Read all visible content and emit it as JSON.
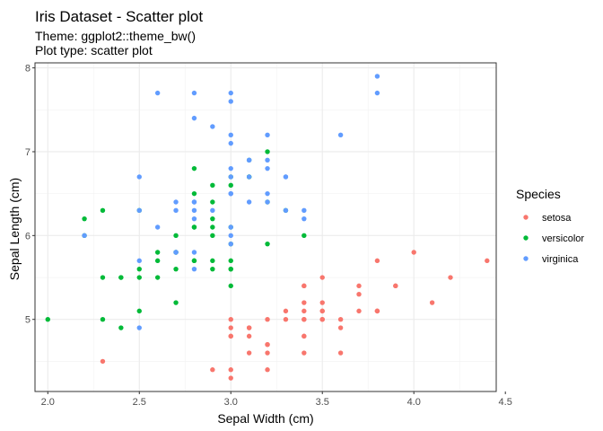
{
  "chart_data": {
    "type": "scatter",
    "title": "Iris Dataset - Scatter plot",
    "subtitle_lines": [
      "Theme: ggplot2::theme_bw()",
      "Plot type: scatter plot"
    ],
    "xlabel": "Sepal Width (cm)",
    "ylabel": "Sepal Length (cm)",
    "xlim": [
      1.93,
      4.45
    ],
    "ylim": [
      4.14,
      8.06
    ],
    "x_ticks": [
      2.0,
      2.5,
      3.0,
      3.5,
      4.0,
      4.5
    ],
    "x_tick_labels": [
      "2.0",
      "2.5",
      "3.0",
      "3.5",
      "4.0",
      "4.5"
    ],
    "y_ticks": [
      5,
      6,
      7,
      8
    ],
    "y_tick_labels": [
      "5",
      "6",
      "7",
      "8"
    ],
    "grid": true,
    "legend": {
      "title": "Species",
      "placement": "right"
    },
    "series": [
      {
        "name": "setosa",
        "color": "#F8766D",
        "points": [
          [
            3.5,
            5.1
          ],
          [
            3.0,
            4.9
          ],
          [
            3.2,
            4.7
          ],
          [
            3.1,
            4.6
          ],
          [
            3.6,
            5.0
          ],
          [
            3.9,
            5.4
          ],
          [
            3.4,
            4.6
          ],
          [
            3.4,
            5.0
          ],
          [
            2.9,
            4.4
          ],
          [
            3.1,
            4.9
          ],
          [
            3.7,
            5.4
          ],
          [
            3.4,
            4.8
          ],
          [
            3.0,
            4.8
          ],
          [
            3.0,
            4.3
          ],
          [
            4.0,
            5.8
          ],
          [
            4.4,
            5.7
          ],
          [
            3.9,
            5.4
          ],
          [
            3.5,
            5.1
          ],
          [
            3.8,
            5.7
          ],
          [
            3.8,
            5.1
          ],
          [
            3.4,
            5.4
          ],
          [
            3.7,
            5.1
          ],
          [
            3.6,
            4.6
          ],
          [
            3.3,
            5.1
          ],
          [
            3.4,
            4.8
          ],
          [
            3.0,
            5.0
          ],
          [
            3.4,
            5.0
          ],
          [
            3.5,
            5.2
          ],
          [
            3.4,
            5.2
          ],
          [
            3.2,
            4.7
          ],
          [
            3.1,
            4.8
          ],
          [
            3.4,
            5.4
          ],
          [
            4.1,
            5.2
          ],
          [
            4.2,
            5.5
          ],
          [
            3.1,
            4.9
          ],
          [
            3.2,
            5.0
          ],
          [
            3.5,
            5.5
          ],
          [
            3.6,
            4.9
          ],
          [
            3.0,
            4.4
          ],
          [
            3.4,
            5.1
          ],
          [
            3.5,
            5.0
          ],
          [
            2.3,
            4.5
          ],
          [
            3.2,
            4.4
          ],
          [
            3.5,
            5.0
          ],
          [
            3.8,
            5.1
          ],
          [
            3.0,
            4.8
          ],
          [
            3.8,
            5.1
          ],
          [
            3.2,
            4.6
          ],
          [
            3.7,
            5.3
          ],
          [
            3.3,
            5.0
          ]
        ]
      },
      {
        "name": "versicolor",
        "color": "#00BA38",
        "points": [
          [
            3.2,
            7.0
          ],
          [
            3.2,
            6.4
          ],
          [
            3.1,
            6.9
          ],
          [
            2.3,
            5.5
          ],
          [
            2.8,
            6.5
          ],
          [
            2.8,
            5.7
          ],
          [
            3.3,
            6.3
          ],
          [
            2.4,
            4.9
          ],
          [
            2.9,
            6.6
          ],
          [
            2.7,
            5.2
          ],
          [
            2.0,
            5.0
          ],
          [
            3.0,
            5.9
          ],
          [
            2.2,
            6.0
          ],
          [
            2.9,
            6.1
          ],
          [
            2.9,
            5.6
          ],
          [
            3.1,
            6.7
          ],
          [
            3.0,
            5.6
          ],
          [
            2.7,
            5.8
          ],
          [
            2.2,
            6.2
          ],
          [
            2.5,
            5.6
          ],
          [
            3.2,
            5.9
          ],
          [
            2.8,
            6.1
          ],
          [
            2.5,
            6.3
          ],
          [
            2.8,
            6.1
          ],
          [
            2.9,
            6.4
          ],
          [
            3.0,
            6.6
          ],
          [
            2.8,
            6.8
          ],
          [
            3.0,
            6.7
          ],
          [
            2.9,
            6.0
          ],
          [
            2.6,
            5.7
          ],
          [
            2.4,
            5.5
          ],
          [
            2.4,
            5.5
          ],
          [
            2.7,
            5.8
          ],
          [
            2.7,
            6.0
          ],
          [
            3.0,
            5.4
          ],
          [
            3.4,
            6.0
          ],
          [
            3.1,
            6.7
          ],
          [
            2.3,
            6.3
          ],
          [
            3.0,
            5.6
          ],
          [
            2.5,
            5.5
          ],
          [
            2.6,
            5.5
          ],
          [
            3.0,
            6.1
          ],
          [
            2.6,
            5.8
          ],
          [
            2.3,
            5.0
          ],
          [
            2.7,
            5.6
          ],
          [
            3.0,
            5.7
          ],
          [
            2.9,
            5.7
          ],
          [
            2.9,
            6.2
          ],
          [
            2.5,
            5.1
          ],
          [
            2.8,
            5.7
          ]
        ]
      },
      {
        "name": "virginica",
        "color": "#619CFF",
        "points": [
          [
            3.3,
            6.3
          ],
          [
            2.7,
            5.8
          ],
          [
            3.0,
            7.1
          ],
          [
            2.9,
            6.3
          ],
          [
            3.0,
            6.5
          ],
          [
            3.0,
            7.6
          ],
          [
            2.5,
            4.9
          ],
          [
            2.9,
            7.3
          ],
          [
            2.5,
            6.7
          ],
          [
            3.6,
            7.2
          ],
          [
            3.2,
            6.5
          ],
          [
            2.7,
            6.4
          ],
          [
            3.0,
            6.8
          ],
          [
            2.5,
            5.7
          ],
          [
            2.8,
            5.8
          ],
          [
            3.2,
            6.4
          ],
          [
            3.0,
            6.5
          ],
          [
            3.8,
            7.7
          ],
          [
            2.6,
            7.7
          ],
          [
            2.2,
            6.0
          ],
          [
            3.2,
            6.9
          ],
          [
            2.8,
            5.6
          ],
          [
            2.8,
            7.7
          ],
          [
            2.7,
            6.3
          ],
          [
            3.3,
            6.7
          ],
          [
            3.2,
            7.2
          ],
          [
            2.8,
            6.2
          ],
          [
            3.0,
            6.1
          ],
          [
            2.8,
            6.4
          ],
          [
            3.0,
            7.2
          ],
          [
            2.8,
            7.4
          ],
          [
            3.8,
            7.9
          ],
          [
            2.8,
            6.4
          ],
          [
            2.8,
            6.3
          ],
          [
            2.6,
            6.1
          ],
          [
            3.0,
            7.7
          ],
          [
            3.4,
            6.3
          ],
          [
            3.1,
            6.4
          ],
          [
            3.0,
            6.0
          ],
          [
            3.1,
            6.9
          ],
          [
            3.1,
            6.7
          ],
          [
            3.1,
            6.9
          ],
          [
            2.7,
            5.8
          ],
          [
            3.2,
            6.8
          ],
          [
            3.3,
            6.7
          ],
          [
            3.0,
            6.7
          ],
          [
            2.5,
            6.3
          ],
          [
            3.0,
            6.5
          ],
          [
            3.4,
            6.2
          ],
          [
            3.0,
            5.9
          ]
        ]
      }
    ]
  }
}
